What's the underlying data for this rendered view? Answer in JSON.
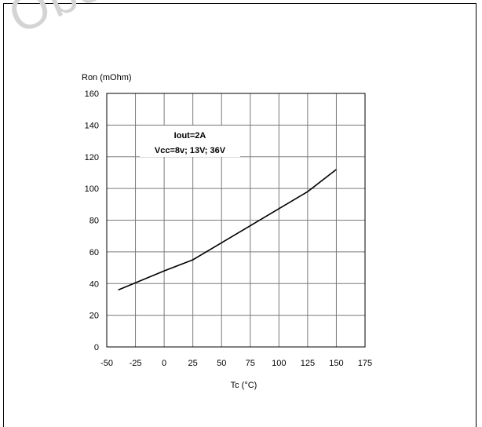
{
  "watermark": "Obsolete",
  "chart_data": {
    "type": "line",
    "ylabel": "Ron (mOhm)",
    "xlabel": "Tc (°C)",
    "xlim": [
      -50,
      175
    ],
    "ylim": [
      0,
      160
    ],
    "x_ticks": [
      -50,
      -25,
      0,
      25,
      50,
      75,
      100,
      125,
      150,
      175
    ],
    "y_ticks": [
      0,
      20,
      40,
      60,
      80,
      100,
      120,
      140,
      160
    ],
    "grid": true,
    "annotation": [
      "Iout=2A",
      "Vcc=8v; 13V; 36V"
    ],
    "series": [
      {
        "x": [
          -40,
          0,
          25,
          125,
          150
        ],
        "y": [
          36,
          48,
          55,
          98,
          112
        ]
      }
    ]
  }
}
